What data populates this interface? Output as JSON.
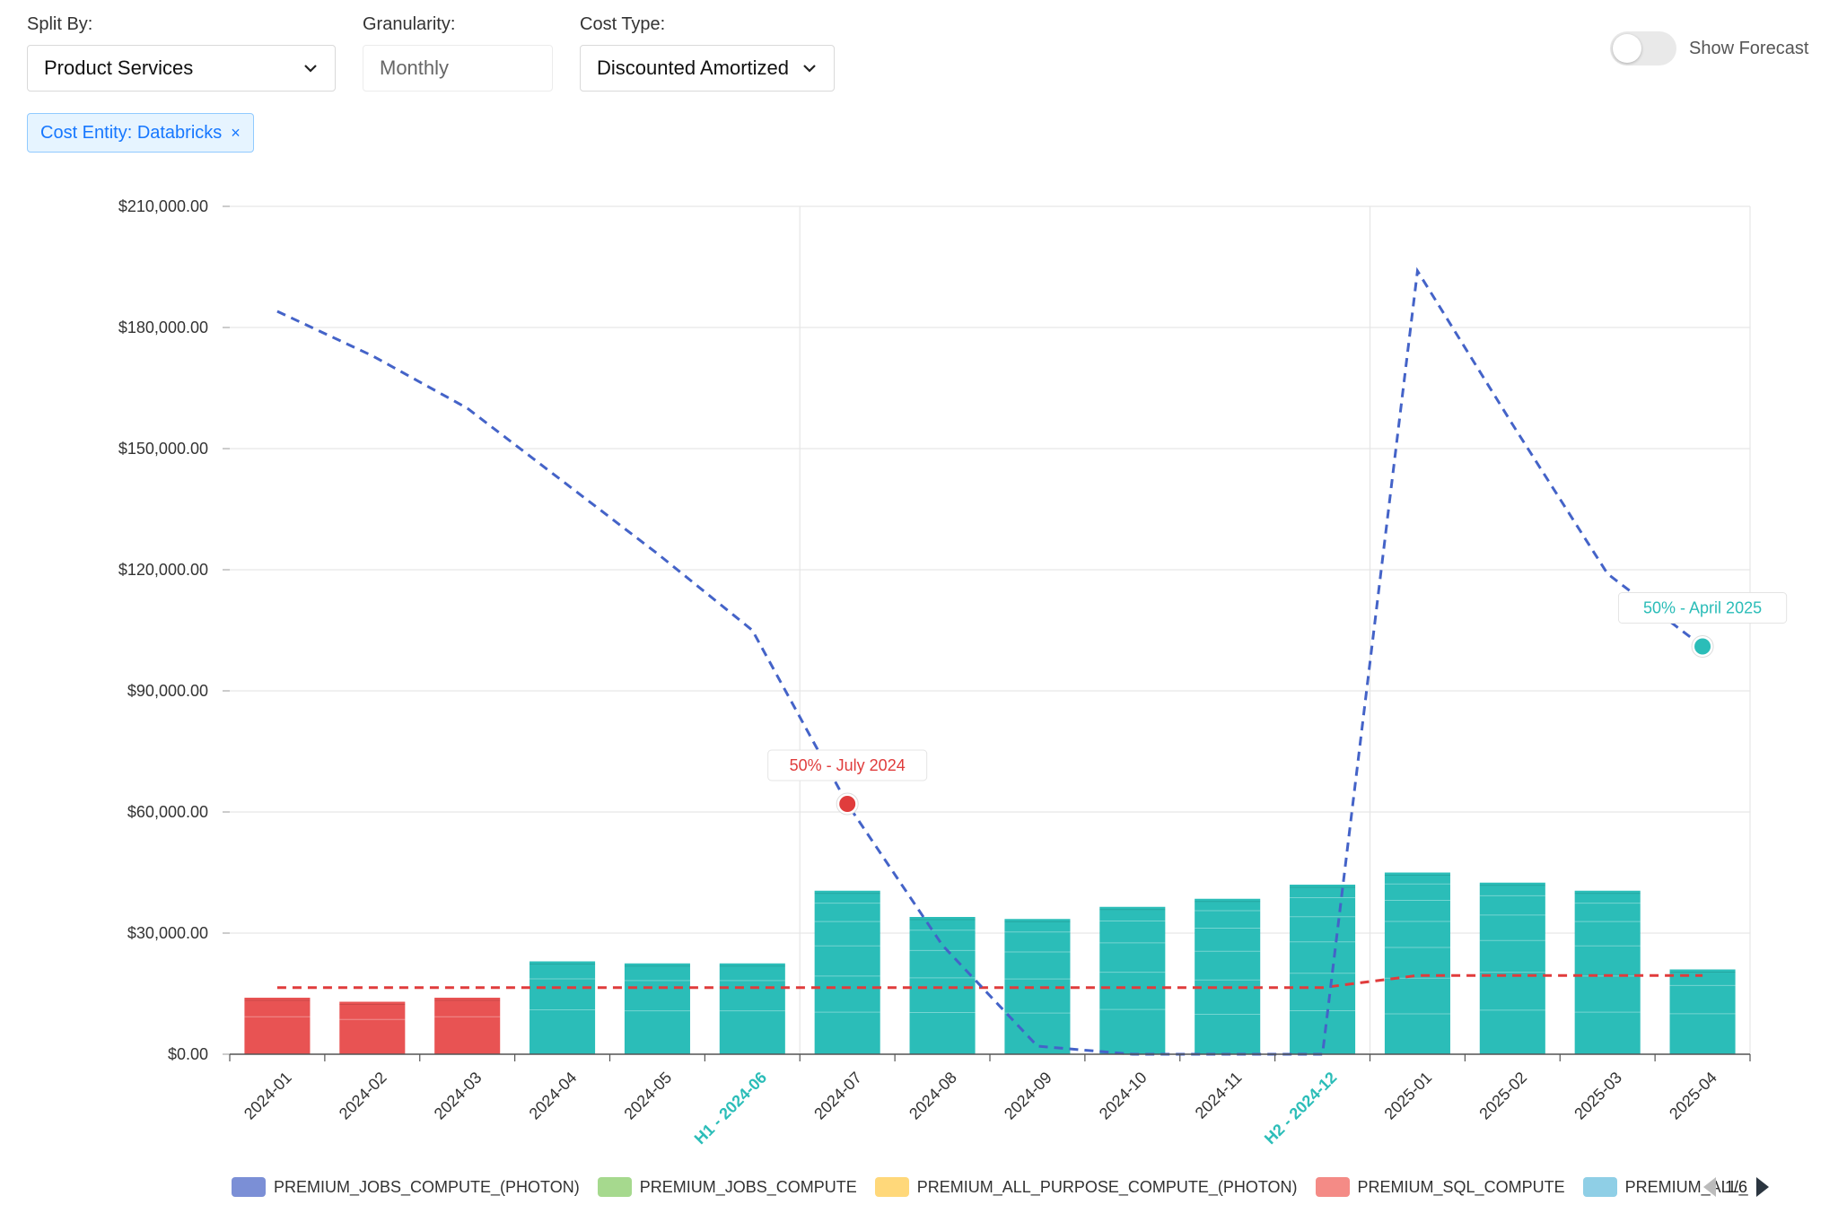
{
  "controls": {
    "split_by": {
      "label": "Split By:",
      "value": "Product Services"
    },
    "granularity": {
      "label": "Granularity:",
      "value": "Monthly"
    },
    "cost_type": {
      "label": "Cost Type:",
      "value": "Discounted Amortized"
    },
    "show_forecast": {
      "label": "Show Forecast",
      "on": false
    }
  },
  "filter_tag": {
    "label": "Cost Entity: Databricks",
    "close": "×"
  },
  "colors": {
    "actual_bar": "#2bbdb8",
    "past_bar": "#e85353",
    "blue_line": "#4463c8",
    "red_line": "#e03c3c",
    "grid": "#e6e6e6",
    "highlight_label": "#2bbdb8"
  },
  "chart_data": {
    "type": "bar",
    "categories": [
      "2024-01",
      "2024-02",
      "2024-03",
      "2024-04",
      "2024-05",
      "2024-06",
      "2024-07",
      "2024-08",
      "2024-09",
      "2024-10",
      "2024-11",
      "2024-12",
      "2025-01",
      "2025-02",
      "2025-03",
      "2025-04"
    ],
    "tick_labels": [
      "2024-01",
      "2024-02",
      "2024-03",
      "2024-04",
      "2024-05",
      "H1 - 2024-06",
      "2024-07",
      "2024-08",
      "2024-09",
      "2024-10",
      "2024-11",
      "H2 - 2024-12",
      "2025-01",
      "2025-02",
      "2025-03",
      "2025-04"
    ],
    "highlighted_ticks": [
      5,
      11
    ],
    "bar_values": [
      14000,
      13000,
      14000,
      23000,
      22500,
      22500,
      40500,
      34000,
      33500,
      36500,
      38500,
      42000,
      45000,
      42500,
      40500,
      21000
    ],
    "bar_colors": [
      "past",
      "past",
      "past",
      "actual",
      "actual",
      "actual",
      "actual",
      "actual",
      "actual",
      "actual",
      "actual",
      "actual",
      "actual",
      "actual",
      "actual",
      "actual"
    ],
    "blue_line": [
      184000,
      173000,
      160000,
      142000,
      124000,
      105000,
      62000,
      27000,
      2000,
      0,
      0,
      0,
      194000,
      156000,
      119000,
      101000
    ],
    "red_line": [
      16500,
      16500,
      16500,
      16500,
      16500,
      16500,
      16500,
      16500,
      16500,
      16500,
      16500,
      16500,
      19500,
      19500,
      19500,
      19500
    ],
    "ylim": [
      0,
      210000
    ],
    "y_ticks": [
      "$0.00",
      "$30,000.00",
      "$60,000.00",
      "$90,000.00",
      "$120,000.00",
      "$150,000.00",
      "$180,000.00",
      "$210,000.00"
    ],
    "y_tick_values": [
      0,
      30000,
      60000,
      90000,
      120000,
      150000,
      180000,
      210000
    ],
    "vertical_markers": [
      5,
      11
    ],
    "annotations": [
      {
        "text": "50% - July 2024",
        "index": 6,
        "value": 62000,
        "color": "#e03c3c"
      },
      {
        "text": "50% - April 2025",
        "index": 15,
        "value": 101000,
        "color": "#2bbdb8"
      }
    ],
    "legend": [
      {
        "name": "PREMIUM_JOBS_COMPUTE_(PHOTON)",
        "color": "#7b8fd6"
      },
      {
        "name": "PREMIUM_JOBS_COMPUTE",
        "color": "#a6d98e"
      },
      {
        "name": "PREMIUM_ALL_PURPOSE_COMPUTE_(PHOTON)",
        "color": "#ffd87a"
      },
      {
        "name": "PREMIUM_SQL_COMPUTE",
        "color": "#f48b86"
      },
      {
        "name": "PREMIUM_ALL_",
        "color": "#8fcfe6"
      }
    ],
    "legend_page": "1/6"
  }
}
